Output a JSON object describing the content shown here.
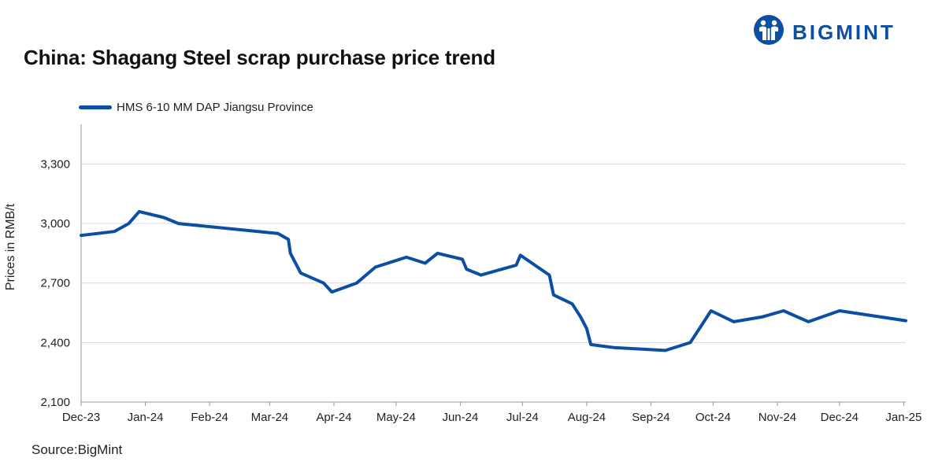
{
  "header": {
    "title": "China: Shagang Steel scrap purchase price trend",
    "brand": "BIGMINT"
  },
  "footer": {
    "source": "Source:BigMint"
  },
  "chart_data": {
    "type": "line",
    "title": "China: Shagang Steel scrap purchase price trend",
    "xlabel": "",
    "ylabel": "Prices in RMB/t",
    "ylim": [
      2100,
      3500
    ],
    "yticks": [
      2100,
      2400,
      2700,
      3000,
      3300
    ],
    "ytick_labels": [
      "2,100",
      "2,400",
      "2,700",
      "3,000",
      "3,300"
    ],
    "xlim_days": [
      0,
      398
    ],
    "x_tick_days": [
      0,
      31,
      62,
      91,
      122,
      152,
      183,
      213,
      244,
      275,
      305,
      336,
      366,
      397
    ],
    "x_tick_labels": [
      "Dec-23",
      "Jan-24",
      "Feb-24",
      "Mar-24",
      "Apr-24",
      "May-24",
      "Jun-24",
      "Jul-24",
      "Aug-24",
      "Sep-24",
      "Oct-24",
      "Nov-24",
      "Dec-24",
      "Jan-25"
    ],
    "legend_position": "top-left",
    "grid": true,
    "series": [
      {
        "name": "HMS 6-10 MM DAP Jiangsu Province",
        "color": "#0b4ea2",
        "x_days": [
          0,
          16,
          23,
          28,
          40,
          47,
          95,
          100,
          101,
          106,
          117,
          121,
          133,
          142,
          157,
          166,
          172,
          184,
          186,
          193,
          210,
          212,
          226,
          228,
          237,
          241,
          244,
          246,
          257,
          282,
          294,
          304,
          315,
          329,
          339,
          351,
          366,
          398
        ],
        "values": [
          2940,
          2960,
          3000,
          3060,
          3030,
          3000,
          2950,
          2920,
          2850,
          2750,
          2700,
          2655,
          2700,
          2780,
          2830,
          2800,
          2850,
          2820,
          2770,
          2740,
          2790,
          2840,
          2740,
          2640,
          2595,
          2530,
          2470,
          2390,
          2375,
          2360,
          2400,
          2560,
          2505,
          2530,
          2560,
          2505,
          2560,
          2510
        ]
      }
    ]
  }
}
